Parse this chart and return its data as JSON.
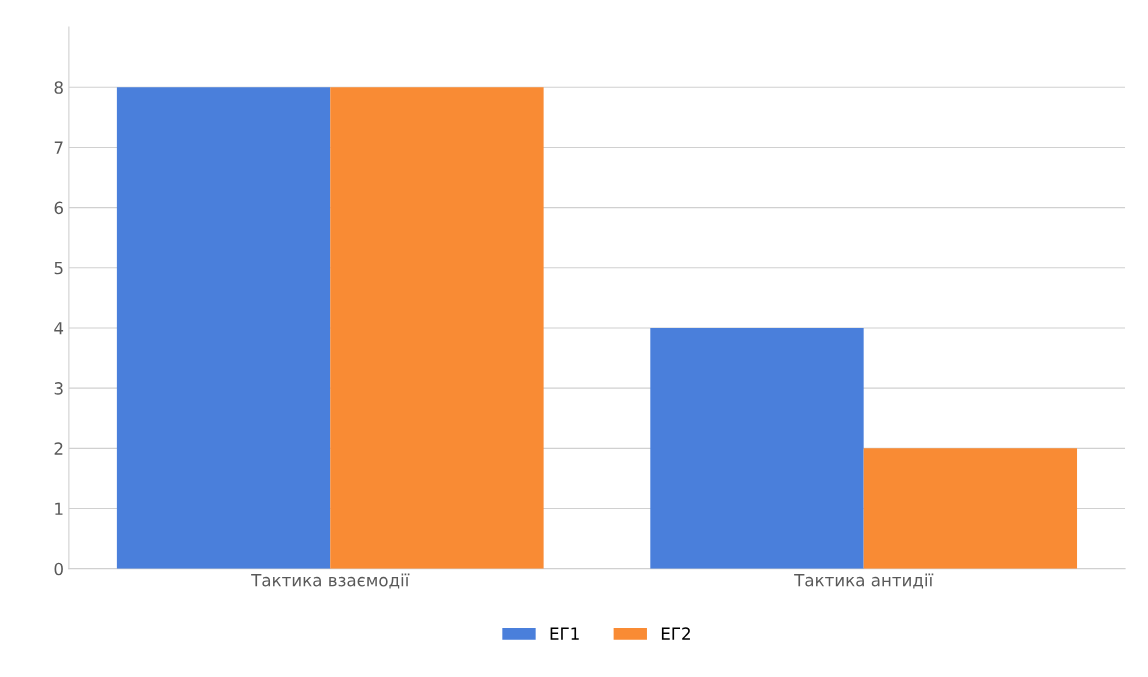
{
  "chart_data": {
    "type": "bar",
    "categories": [
      "Тактика взаємодії",
      "Тактика антидії"
    ],
    "series": [
      {
        "name": "ЕГ1",
        "color": "#4a7fdb",
        "values": [
          8,
          4
        ]
      },
      {
        "name": "ЕГ2",
        "color": "#f98b34",
        "values": [
          8,
          2
        ]
      }
    ],
    "ylim": [
      0,
      9
    ],
    "yticks": [
      0,
      1,
      2,
      3,
      4,
      5,
      6,
      7,
      8
    ],
    "grid": "y",
    "legend": "bottom"
  }
}
